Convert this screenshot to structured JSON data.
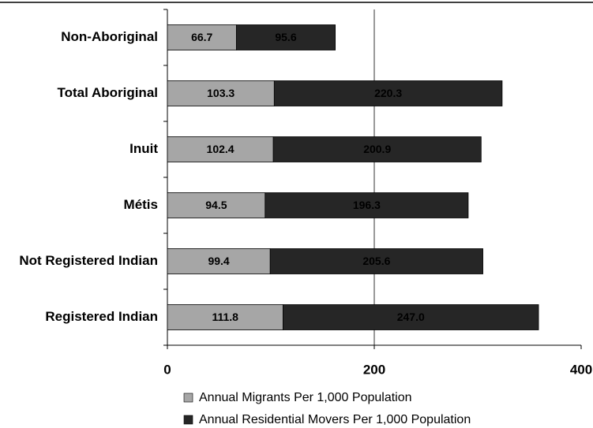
{
  "chart_data": {
    "type": "bar",
    "orientation": "horizontal",
    "stacked": true,
    "categories": [
      "Non-Aboriginal",
      "Total Aboriginal",
      "Inuit",
      "Métis",
      "Not Registered Indian",
      "Registered Indian"
    ],
    "series": [
      {
        "name": "Annual Migrants Per 1,000 Population",
        "color": "#a6a6a6",
        "values": [
          66.7,
          103.3,
          102.4,
          94.5,
          99.4,
          111.8
        ],
        "value_labels": [
          "66.7",
          "103.3",
          "102.4",
          "94.5",
          "99.4",
          "111.8"
        ]
      },
      {
        "name": "Annual Residential Movers Per 1,000 Population",
        "color": "#262626",
        "values": [
          95.6,
          220.3,
          200.9,
          196.3,
          205.6,
          247.0
        ],
        "value_labels": [
          "95.6",
          "220.3",
          "200.9",
          "196.3",
          "205.6",
          "247.0"
        ]
      }
    ],
    "xlim": [
      0,
      400
    ],
    "xticks": [
      0,
      200,
      400
    ],
    "grid": true
  }
}
